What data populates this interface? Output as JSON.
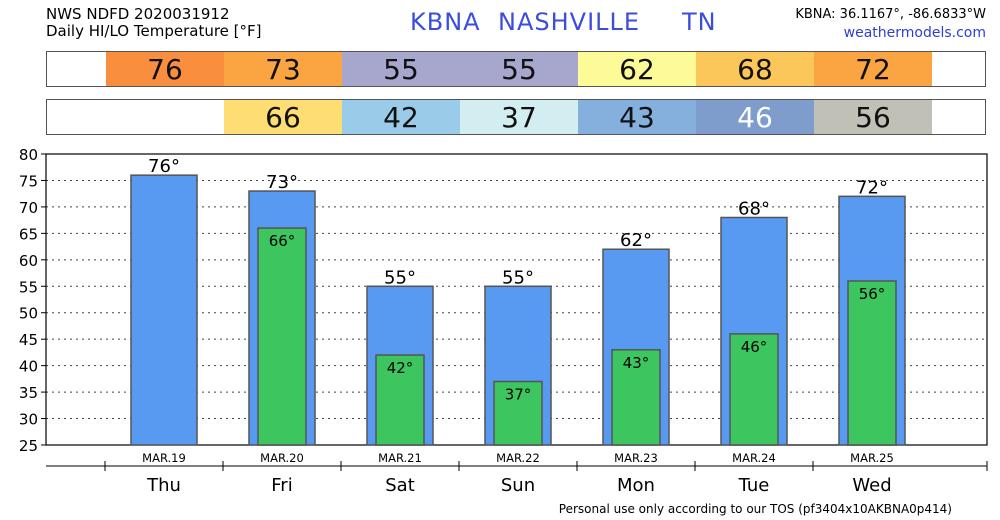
{
  "header": {
    "line1": "NWS NDFD 2020031912",
    "line2": "Daily HI/LO Temperature [°F]",
    "station_id": "KBNA",
    "station_name": "NASHVILLE",
    "state": "TN",
    "coords": "KBNA: 36.1167°, -86.6833°W",
    "site": "weathermodels.com"
  },
  "hi_row": [
    {
      "value": "76",
      "color": "#f98e3e"
    },
    {
      "value": "73",
      "color": "#fba442"
    },
    {
      "value": "55",
      "color": "#a7a6cc"
    },
    {
      "value": "55",
      "color": "#a7a6cc"
    },
    {
      "value": "62",
      "color": "#fdfb97"
    },
    {
      "value": "68",
      "color": "#fbc75a"
    },
    {
      "value": "72",
      "color": "#fba442"
    }
  ],
  "lo_row": [
    {
      "value": "",
      "color": "#ffffff"
    },
    {
      "value": "66",
      "color": "#fede72"
    },
    {
      "value": "42",
      "color": "#9acbe8"
    },
    {
      "value": "37",
      "color": "#d2eef0"
    },
    {
      "value": "43",
      "color": "#85b0de"
    },
    {
      "value": "46",
      "color": "#7f9dcc",
      "text_color": "#ffffff"
    },
    {
      "value": "56",
      "color": "#c1c0b7"
    }
  ],
  "chart_data": {
    "type": "bar",
    "categories": [
      "Thu",
      "Fri",
      "Sat",
      "Sun",
      "Mon",
      "Tue",
      "Wed"
    ],
    "dates": [
      "MAR.19",
      "MAR.20",
      "MAR.21",
      "MAR.22",
      "MAR.23",
      "MAR.24",
      "MAR.25"
    ],
    "series": [
      {
        "values": [
          76,
          73,
          55,
          55,
          62,
          68,
          72
        ],
        "color": "#5899f2"
      },
      {
        "values": [
          null,
          66,
          42,
          37,
          43,
          46,
          56
        ],
        "color": "#3dc65f"
      }
    ],
    "hi_labels": [
      "76°",
      "73°",
      "55°",
      "55°",
      "62°",
      "68°",
      "72°"
    ],
    "lo_labels": [
      "",
      "66°",
      "42°",
      "37°",
      "43°",
      "46°",
      "56°"
    ],
    "ylim": [
      25,
      80
    ],
    "yticks": [
      25,
      30,
      35,
      40,
      45,
      50,
      55,
      60,
      65,
      70,
      75,
      80
    ],
    "grid": true
  },
  "footer": "Personal use only according to our TOS (pf3404x10AKBNA0p414)"
}
